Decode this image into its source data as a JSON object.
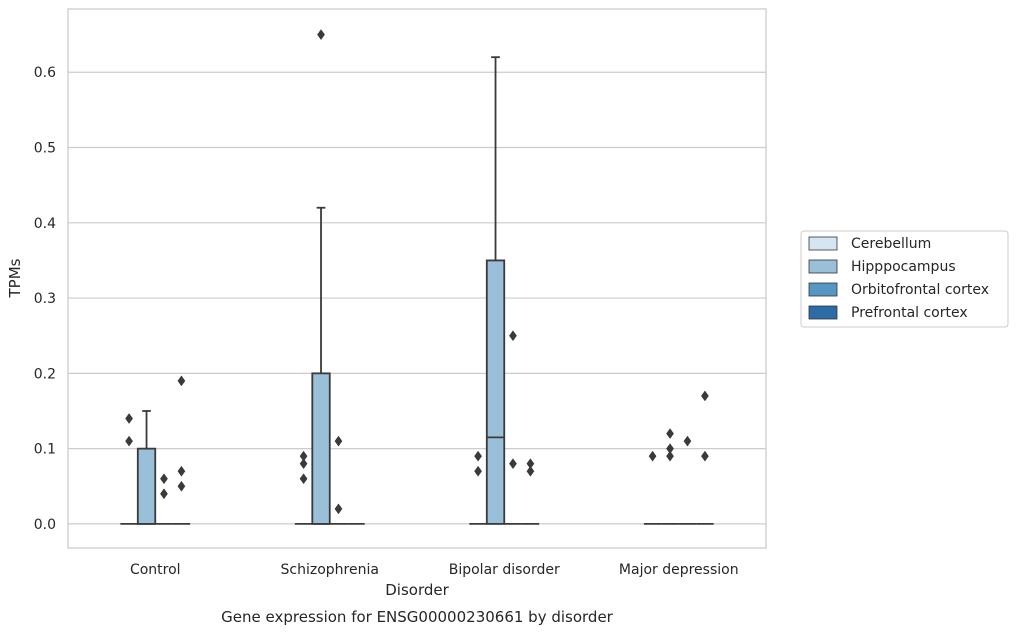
{
  "chart_data": {
    "type": "box",
    "xlabel": "Disorder",
    "ylabel": "TPMs",
    "caption": "Gene expression for ENSG00000230661 by disorder",
    "ylim": [
      -0.032,
      0.684
    ],
    "yticks": [
      "0.0",
      "0.1",
      "0.2",
      "0.3",
      "0.4",
      "0.5",
      "0.6"
    ],
    "grid": true,
    "legend_position": "right",
    "categories": [
      "Control",
      "Schizophrenia",
      "Bipolar disorder",
      "Major depression"
    ],
    "series": [
      {
        "name": "Cerebellum",
        "color": "#d6e5f2",
        "boxes": [
          {
            "q1": 0,
            "median": 0,
            "q3": 0,
            "whisker_low": 0,
            "whisker_high": 0,
            "outliers": [
              0.14,
              0.11
            ]
          },
          {
            "q1": 0,
            "median": 0,
            "q3": 0,
            "whisker_low": 0,
            "whisker_high": 0,
            "outliers": [
              0.09,
              0.08,
              0.06
            ]
          },
          {
            "q1": 0,
            "median": 0,
            "q3": 0,
            "whisker_low": 0,
            "whisker_high": 0,
            "outliers": [
              0.09,
              0.07
            ]
          },
          {
            "q1": 0,
            "median": 0,
            "q3": 0,
            "whisker_low": 0,
            "whisker_high": 0,
            "outliers": [
              0.09
            ]
          }
        ]
      },
      {
        "name": "Hipppocampus",
        "color": "#9abfd9",
        "boxes": [
          {
            "q1": 0,
            "median": 0,
            "q3": 0.1,
            "whisker_low": 0,
            "whisker_high": 0.15,
            "outliers": []
          },
          {
            "q1": 0,
            "median": 0,
            "q3": 0.2,
            "whisker_low": 0,
            "whisker_high": 0.42,
            "outliers": [
              0.65
            ]
          },
          {
            "q1": 0,
            "median": 0.115,
            "q3": 0.35,
            "whisker_low": 0,
            "whisker_high": 0.62,
            "outliers": []
          },
          {
            "q1": 0,
            "median": 0,
            "q3": 0,
            "whisker_low": 0,
            "whisker_high": 0,
            "outliers": [
              0.12,
              0.1,
              0.09
            ]
          }
        ]
      },
      {
        "name": "Orbitofrontal cortex",
        "color": "#5596c4",
        "boxes": [
          {
            "q1": 0,
            "median": 0,
            "q3": 0,
            "whisker_low": 0,
            "whisker_high": 0,
            "outliers": [
              0.06,
              0.04
            ]
          },
          {
            "q1": 0,
            "median": 0,
            "q3": 0,
            "whisker_low": 0,
            "whisker_high": 0,
            "outliers": [
              0.11,
              0.02
            ]
          },
          {
            "q1": 0,
            "median": 0,
            "q3": 0,
            "whisker_low": 0,
            "whisker_high": 0,
            "outliers": [
              0.25,
              0.08
            ]
          },
          {
            "q1": 0,
            "median": 0,
            "q3": 0,
            "whisker_low": 0,
            "whisker_high": 0,
            "outliers": [
              0.11
            ]
          }
        ]
      },
      {
        "name": "Prefrontal cortex",
        "color": "#2c6ba5",
        "boxes": [
          {
            "q1": 0,
            "median": 0,
            "q3": 0,
            "whisker_low": 0,
            "whisker_high": 0,
            "outliers": [
              0.19,
              0.07,
              0.05
            ]
          },
          {
            "q1": 0,
            "median": 0,
            "q3": 0,
            "whisker_low": 0,
            "whisker_high": 0,
            "outliers": []
          },
          {
            "q1": 0,
            "median": 0,
            "q3": 0,
            "whisker_low": 0,
            "whisker_high": 0,
            "outliers": [
              0.08,
              0.07
            ]
          },
          {
            "q1": 0,
            "median": 0,
            "q3": 0,
            "whisker_low": 0,
            "whisker_high": 0,
            "outliers": [
              0.17,
              0.09
            ]
          }
        ]
      }
    ]
  }
}
